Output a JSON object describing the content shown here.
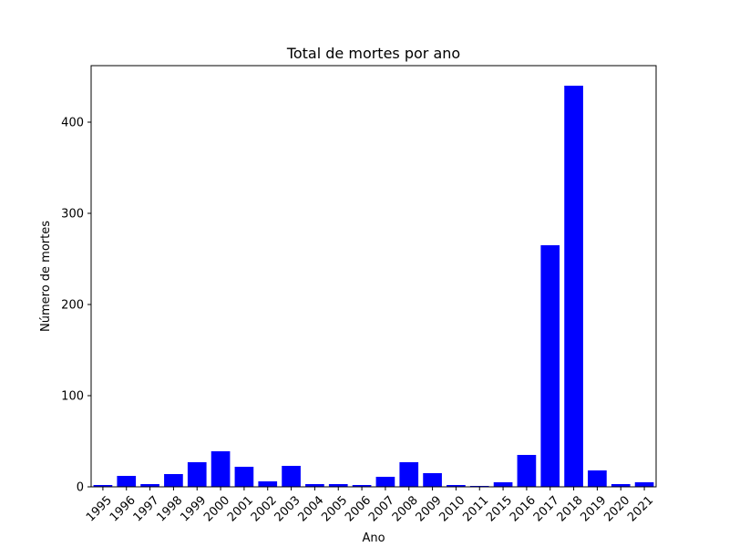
{
  "chart_data": {
    "type": "bar",
    "title": "Total de mortes por ano",
    "xlabel": "Ano",
    "ylabel": "Número de mortes",
    "categories": [
      "1995",
      "1996",
      "1997",
      "1998",
      "1999",
      "2000",
      "2001",
      "2002",
      "2003",
      "2004",
      "2005",
      "2006",
      "2007",
      "2008",
      "2009",
      "2010",
      "2011",
      "2015",
      "2016",
      "2017",
      "2018",
      "2019",
      "2020",
      "2021"
    ],
    "values": [
      2,
      12,
      3,
      14,
      27,
      39,
      22,
      6,
      23,
      3,
      3,
      2,
      11,
      27,
      15,
      2,
      1,
      5,
      35,
      265,
      440,
      18,
      3,
      5
    ],
    "ylim": [
      0,
      462
    ],
    "yticks": [
      0,
      100,
      200,
      300,
      400
    ],
    "bar_color": "#0000ff",
    "grid": false,
    "x_tick_rotation_deg": 45
  }
}
